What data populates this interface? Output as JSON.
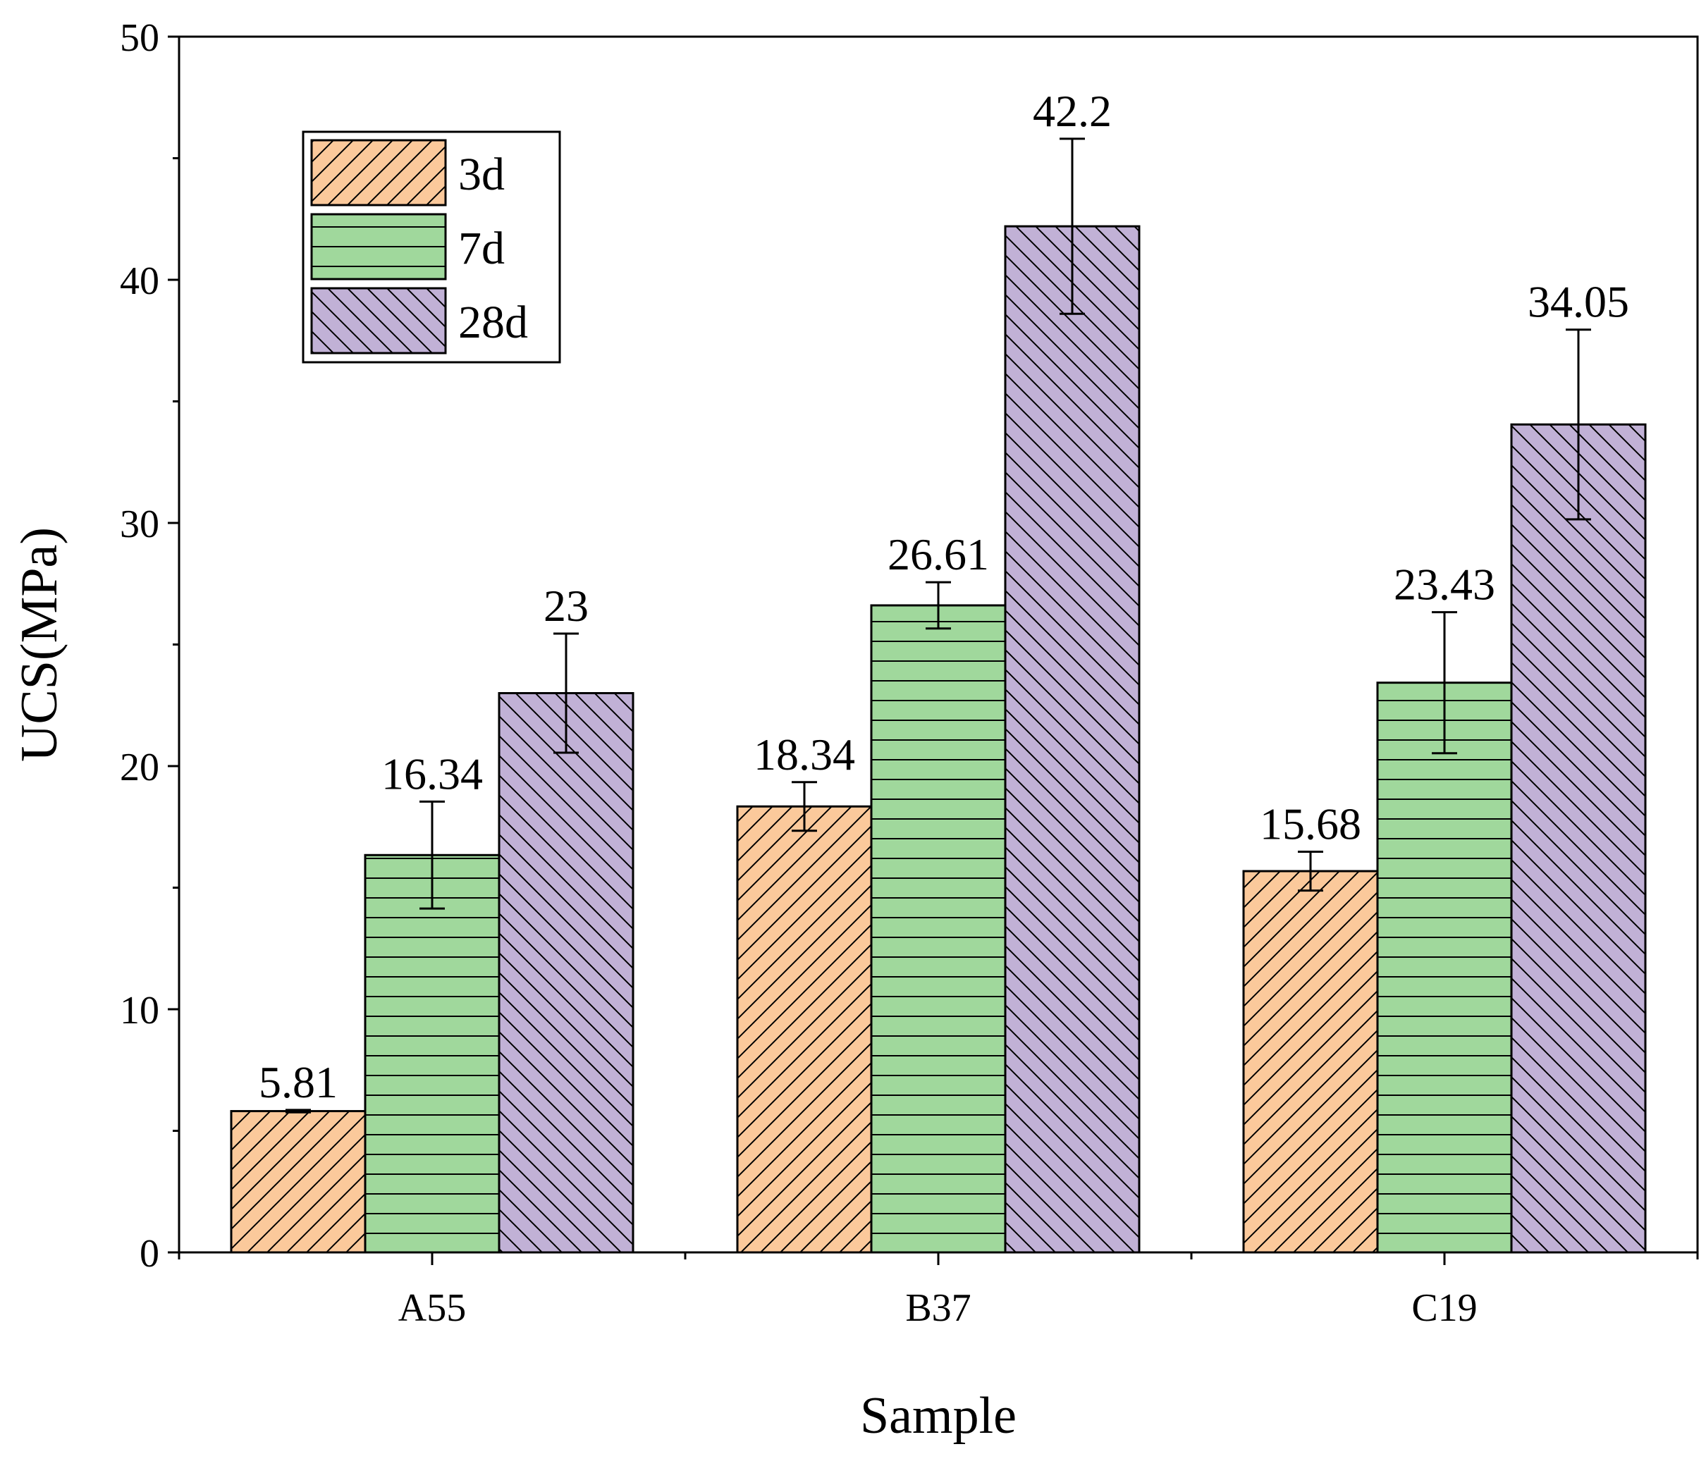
{
  "chart_data": {
    "type": "bar",
    "title": "",
    "xlabel": "Sample",
    "ylabel": "UCS(MPa)",
    "ylim": [
      0,
      50
    ],
    "yticks": [
      0,
      10,
      20,
      30,
      40,
      50
    ],
    "grid": false,
    "legend_position": "top-left",
    "categories": [
      "A55",
      "B37",
      "C19"
    ],
    "series": [
      {
        "name": "3d",
        "color": "#fbc99b",
        "hatch": "forward-diagonal",
        "values": [
          5.81,
          18.34,
          15.68
        ],
        "errors": [
          0.05,
          1.0,
          0.8
        ],
        "labels": [
          "5.81",
          "18.34",
          "15.68"
        ]
      },
      {
        "name": "7d",
        "color": "#a0d89c",
        "hatch": "horizontal",
        "values": [
          16.34,
          26.61,
          23.43
        ],
        "errors": [
          2.2,
          0.95,
          2.9
        ],
        "labels": [
          "16.34",
          "26.61",
          "23.43"
        ]
      },
      {
        "name": "28d",
        "color": "#c1b1d6",
        "hatch": "back-diagonal",
        "values": [
          23,
          42.2,
          34.05
        ],
        "errors": [
          2.45,
          3.6,
          3.9
        ],
        "labels": [
          "23",
          "42.2",
          "34.05"
        ]
      }
    ]
  }
}
